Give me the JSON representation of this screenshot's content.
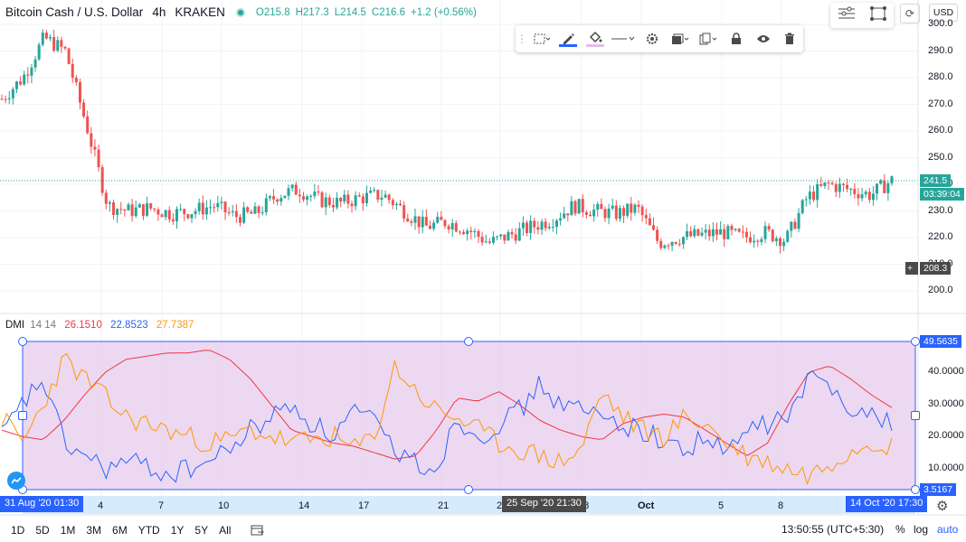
{
  "symbol": {
    "title": "Bitcoin Cash / U.S. Dollar",
    "interval": "4h",
    "exchange": "KRAKEN",
    "open": "O215.8",
    "high": "H217.3",
    "low": "L214.5",
    "close": "C216.6",
    "change": "+1.2 (+0.56%)",
    "status_color": "#26a69a"
  },
  "toolbar": {
    "icons": [
      "select-icon",
      "pencil-icon",
      "fill-bucket-icon",
      "line-style-icon",
      "settings-icon",
      "layers-icon",
      "copy-icon",
      "lock-icon",
      "eye-icon",
      "trash-icon"
    ]
  },
  "top_right": {
    "currency": "USD"
  },
  "price_axis": {
    "ticks": [
      "300.0",
      "290.0",
      "280.0",
      "270.0",
      "260.0",
      "250.0",
      "240.0",
      "230.0",
      "220.0",
      "210.0",
      "200.0"
    ],
    "current_price": "241.5",
    "countdown": "03:39:04",
    "crosshair_price": "208.3",
    "current_color": "#26a69a"
  },
  "dmi": {
    "name": "DMI",
    "params": "14 14",
    "plus_di": "26.1510",
    "minus_di": "22.8523",
    "adx": "27.7387",
    "colors": {
      "plus": "#f23645",
      "minus": "#2962ff",
      "adx": "#ff9800"
    },
    "axis_ticks": [
      "40.0000",
      "30.0000",
      "20.0000",
      "10.0000"
    ],
    "rect_top_value": "49.5635",
    "rect_bottom_value": "3.5167"
  },
  "time_axis": {
    "labels": [
      "4",
      "7",
      "10",
      "14",
      "17",
      "21",
      "2",
      "28",
      "Oct",
      "5",
      "8"
    ],
    "left_tag": "31 Aug '20  01:30",
    "middle_tag": "25 Sep '20  21:30",
    "right_tag": "14 Oct '20  17:30"
  },
  "bottom_bar": {
    "ranges": [
      "1D",
      "5D",
      "1M",
      "3M",
      "6M",
      "YTD",
      "1Y",
      "5Y",
      "All"
    ],
    "clock": "13:50:55 (UTC+5:30)",
    "percent": "%",
    "log": "log",
    "auto": "auto"
  },
  "chart_data": {
    "type": "candlestick",
    "x_range": [
      "31 Aug '20",
      "14 Oct '20"
    ],
    "ylim": [
      200,
      300
    ],
    "close_approx": [
      272,
      280,
      295,
      290,
      262,
      232,
      230,
      231,
      229,
      230,
      232,
      228,
      229,
      236,
      238,
      234,
      233,
      235,
      236,
      230,
      224,
      226,
      223,
      218,
      221,
      224,
      227,
      232,
      230,
      229,
      231,
      218,
      220,
      221,
      222,
      220,
      222,
      219,
      235,
      240,
      238,
      236,
      241.5
    ],
    "indicator": {
      "type": "line",
      "name": "DMI",
      "ylim": [
        3.5167,
        49.5635
      ],
      "series": [
        {
          "name": "+DI",
          "values": [
            22,
            20,
            19,
            25,
            33,
            40,
            44,
            45,
            46,
            46,
            47,
            44,
            38,
            30,
            22,
            20,
            18,
            17,
            15,
            13,
            14,
            22,
            32,
            31,
            34,
            30,
            25,
            22,
            20,
            19,
            24,
            26,
            27,
            26,
            22,
            18,
            14,
            18,
            30,
            40,
            42,
            38,
            33,
            29
          ]
        },
        {
          "name": "-DI",
          "values": [
            20,
            30,
            38,
            18,
            14,
            10,
            12,
            11,
            8,
            10,
            12,
            16,
            22,
            26,
            30,
            24,
            20,
            28,
            24,
            16,
            12,
            10,
            26,
            20,
            24,
            28,
            36,
            30,
            28,
            26,
            24,
            22,
            18,
            16,
            20,
            14,
            22,
            24,
            26,
            38,
            36,
            30,
            26,
            25
          ]
        },
        {
          "name": "ADX",
          "values": [
            26,
            18,
            30,
            44,
            38,
            32,
            26,
            24,
            22,
            20,
            18,
            19,
            22,
            20,
            18,
            19,
            20,
            16,
            20,
            42,
            34,
            28,
            26,
            22,
            18,
            16,
            14,
            12,
            16,
            34,
            26,
            22,
            20,
            26,
            24,
            18,
            14,
            12,
            10,
            8,
            12,
            16,
            19,
            17
          ]
        }
      ]
    }
  }
}
